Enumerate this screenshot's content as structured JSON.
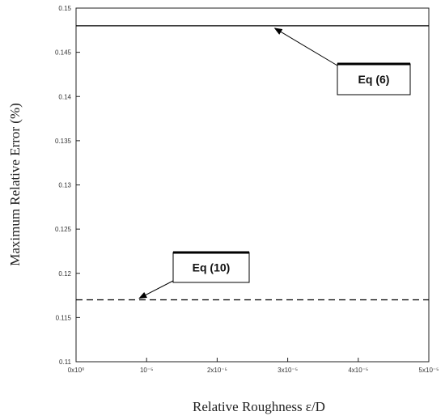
{
  "chart_data": {
    "type": "line",
    "title": "",
    "xlabel": "Relative Roughness ε/D",
    "ylabel": "Maximum Relative Error (%)",
    "xlim": [
      0,
      5e-05
    ],
    "ylim": [
      0.11,
      0.15
    ],
    "x_ticks": [
      {
        "value": 0,
        "label": "0x10⁰"
      },
      {
        "value": 1e-05,
        "label": "10⁻⁵"
      },
      {
        "value": 2e-05,
        "label": "2x10⁻⁵"
      },
      {
        "value": 3e-05,
        "label": "3x10⁻⁵"
      },
      {
        "value": 4e-05,
        "label": "4x10⁻⁵"
      },
      {
        "value": 5e-05,
        "label": "5x10⁻⁵"
      }
    ],
    "y_ticks": [
      {
        "value": 0.11,
        "label": "0.11"
      },
      {
        "value": 0.115,
        "label": "0.115"
      },
      {
        "value": 0.12,
        "label": "0.12"
      },
      {
        "value": 0.125,
        "label": "0.125"
      },
      {
        "value": 0.13,
        "label": "0.13"
      },
      {
        "value": 0.135,
        "label": "0.135"
      },
      {
        "value": 0.14,
        "label": "0.14"
      },
      {
        "value": 0.145,
        "label": "0.145"
      },
      {
        "value": 0.15,
        "label": "0.15"
      }
    ],
    "grid": false,
    "series": [
      {
        "key": "eq6",
        "x": [
          0,
          5e-05
        ],
        "y": [
          0.148,
          0.148
        ],
        "style": "solid",
        "color": "#000000"
      },
      {
        "key": "eq10",
        "x": [
          0,
          5e-05
        ],
        "y": [
          0.117,
          0.117
        ],
        "style": "dashed",
        "color": "#000000"
      }
    ],
    "annotations": [
      {
        "key": "eq6",
        "text": "Eq (6)",
        "point_x": 2.77e-05,
        "point_y": 0.148
      },
      {
        "key": "eq10",
        "text": "Eq (10)",
        "point_x": 8.5e-06,
        "point_y": 0.117
      }
    ]
  }
}
